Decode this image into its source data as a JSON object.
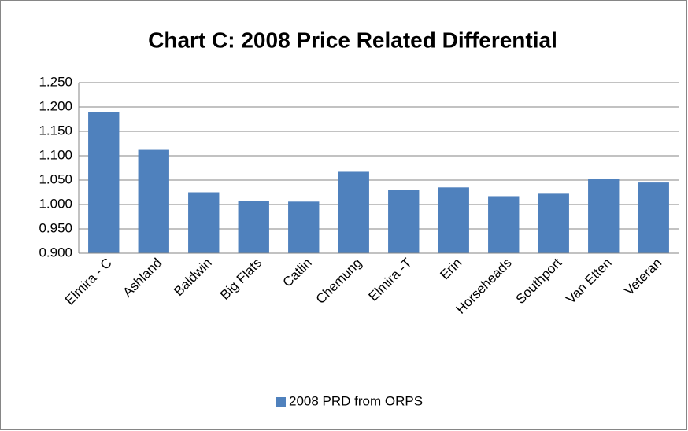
{
  "chart_data": {
    "type": "bar",
    "title": "Chart C: 2008 Price Related Differential",
    "categories": [
      "Elmira - C",
      "Ashland",
      "Baldwin",
      "Big Flats",
      "Catlin",
      "Chemung",
      "Elmira -T",
      "Erin",
      "Horseheads",
      "Southport",
      "Van Etten",
      "Veteran"
    ],
    "series": [
      {
        "name": "2008 PRD from ORPS",
        "color": "#4f81bd",
        "values": [
          1.19,
          1.112,
          1.025,
          1.008,
          1.006,
          1.067,
          1.03,
          1.035,
          1.017,
          1.022,
          1.052,
          1.045
        ]
      }
    ],
    "ylim": [
      0.9,
      1.25
    ],
    "yticks": [
      {
        "value": 0.9,
        "label": "0.900"
      },
      {
        "value": 0.95,
        "label": "0.950"
      },
      {
        "value": 1,
        "label": "1.000"
      },
      {
        "value": 1.05,
        "label": "1.050"
      },
      {
        "value": 1.1,
        "label": "1.100"
      },
      {
        "value": 1.15,
        "label": "1.150"
      },
      {
        "value": 1.2,
        "label": "1.200"
      },
      {
        "value": 1.25,
        "label": "1.250"
      }
    ],
    "grid": true,
    "legend": "bottom"
  }
}
